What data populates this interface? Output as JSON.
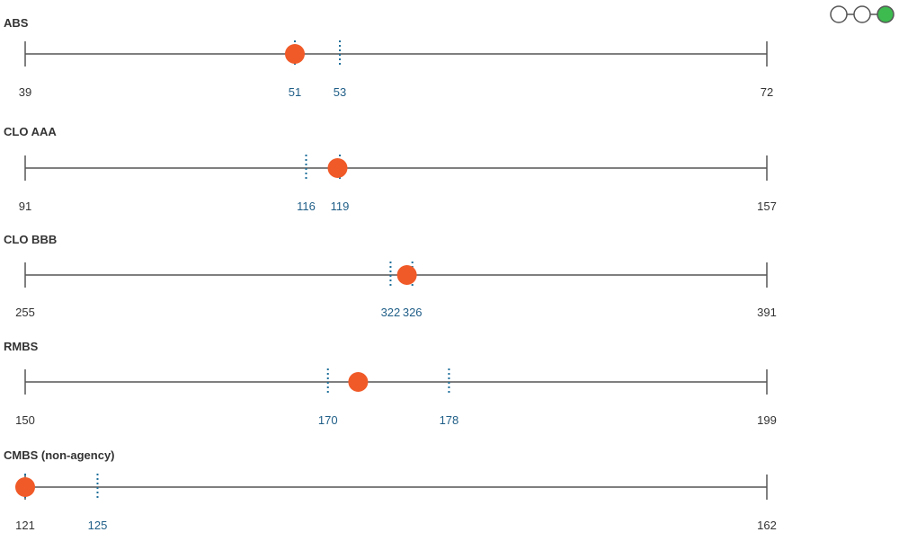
{
  "colors": {
    "axis": "#555555",
    "marker": "#f05a28",
    "dotted": "#1f6f9a",
    "label_blue": "#1f5e87",
    "text": "#333333",
    "toggle_active": "#3dbb4f",
    "toggle_outline": "#555555"
  },
  "toggle": {
    "count": 3,
    "active_index": 2
  },
  "chart_data": {
    "type": "range-dot",
    "rows": [
      {
        "name": "ABS",
        "min": 39,
        "max": 72,
        "markers": [
          51,
          53
        ],
        "dot": 51
      },
      {
        "name": "CLO AAA",
        "min": 91,
        "max": 157,
        "markers": [
          116,
          119
        ],
        "dot": 118.8
      },
      {
        "name": "CLO BBB",
        "min": 255,
        "max": 391,
        "markers": [
          322,
          326
        ],
        "dot": 325
      },
      {
        "name": "RMBS",
        "min": 150,
        "max": 199,
        "markers": [
          170,
          178
        ],
        "dot": 172
      },
      {
        "name": "CMBS (non-agency)",
        "min": 121,
        "max": 162,
        "markers": [
          121,
          125
        ],
        "marker_labels": [
          "125"
        ],
        "dot": 121
      }
    ]
  }
}
